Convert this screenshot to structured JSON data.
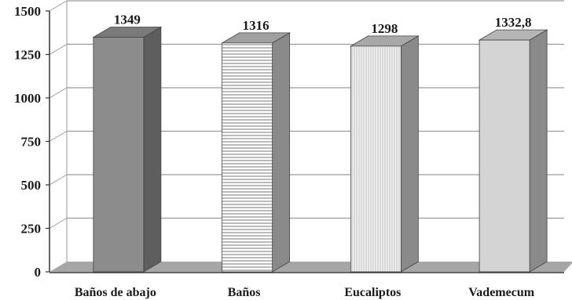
{
  "chart_data": {
    "type": "bar",
    "style": "3d-column",
    "categories": [
      "Baños de abajo",
      "Baños",
      "Eucaliptos",
      "Vademecum"
    ],
    "values": [
      1349,
      1316,
      1298,
      1332.8
    ],
    "value_labels": [
      "1349",
      "1316",
      "1298",
      "1332,8"
    ],
    "yticks": [
      "0",
      "250",
      "500",
      "750",
      "1000",
      "1250",
      "1500"
    ],
    "ylim": [
      0,
      1500
    ],
    "grid": true,
    "legend": "none",
    "colors": {
      "bar_dark": "#8c8c8c",
      "bar_dark_side": "#5e5e5e",
      "bar_light": "#e8e8e8",
      "bar_light_side": "#8a8a8a",
      "floor": "#a6a6a6",
      "axis": "#333333",
      "grid": "#9a9a9a"
    },
    "patterns": [
      "solid-dark",
      "horizontal-lines",
      "vertical-lines",
      "solid-light"
    ]
  }
}
